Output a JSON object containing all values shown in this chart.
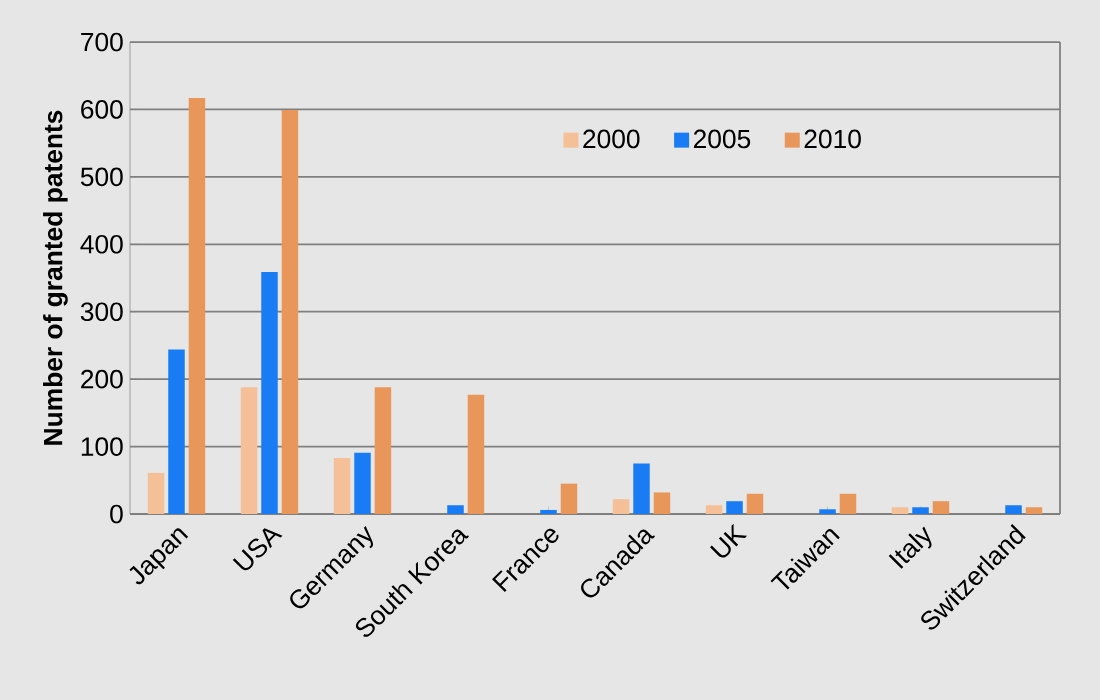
{
  "chart_data": {
    "type": "bar",
    "ylabel": "Number of granted patents",
    "categories": [
      "Japan",
      "USA",
      "Germany",
      "South Korea",
      "France",
      "Canada",
      "UK",
      "Taiwan",
      "Italy",
      "Switzerland"
    ],
    "series": [
      {
        "name": "2000",
        "color": "#f5bf98",
        "values": [
          61,
          188,
          83,
          null,
          null,
          22,
          13,
          null,
          10,
          null
        ]
      },
      {
        "name": "2005",
        "color": "#1a7cf5",
        "values": [
          244,
          359,
          91,
          13,
          6,
          75,
          19,
          7,
          10,
          13
        ]
      },
      {
        "name": "2010",
        "color": "#e8965a",
        "values": [
          617,
          599,
          188,
          177,
          45,
          32,
          30,
          30,
          19,
          10
        ]
      }
    ],
    "ylim": [
      0,
      700
    ],
    "yticks": [
      0,
      100,
      200,
      300,
      400,
      500,
      600,
      700
    ],
    "grid": "y",
    "legend": "top right"
  }
}
